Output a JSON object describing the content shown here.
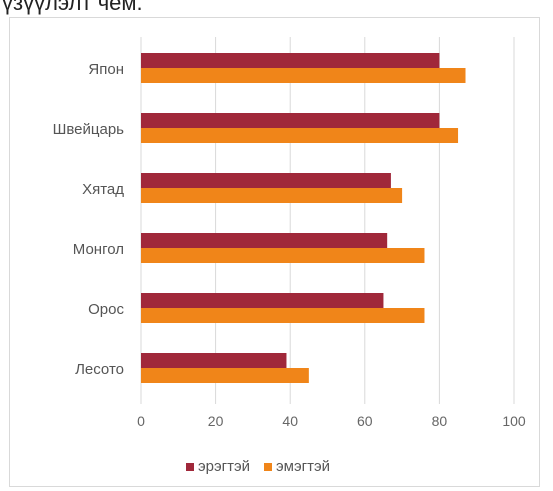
{
  "top_caption": "үзүүлэлт чем.",
  "chart_data": {
    "type": "bar",
    "orientation": "horizontal",
    "categories": [
      "Япон",
      "Швейцарь",
      "Хятад",
      "Монгол",
      "Орос",
      "Лесото"
    ],
    "series": [
      {
        "name": "эрэгтэй",
        "color": "#a0283a",
        "values": [
          80,
          80,
          67,
          66,
          65,
          39
        ]
      },
      {
        "name": "эмэгтэй",
        "color": "#f08519",
        "values": [
          87,
          85,
          70,
          76,
          76,
          45
        ]
      }
    ],
    "xlim": [
      0,
      100
    ],
    "xticks": [
      "0",
      "20",
      "40",
      "60",
      "80",
      "100"
    ],
    "grid": true,
    "legend_position": "bottom"
  }
}
